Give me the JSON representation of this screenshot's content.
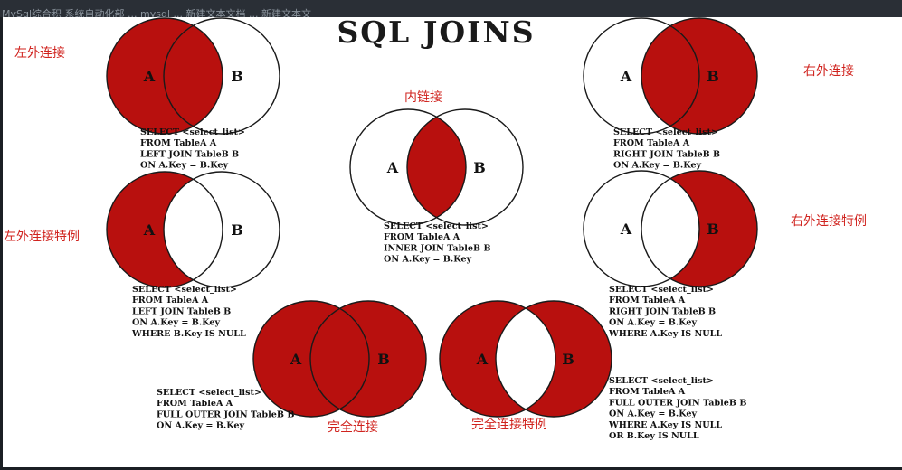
{
  "window": {
    "top_bar_text": "MySql综合积 系统自动化部 ... mysql ... 新建文本文档 ... 新建文本文"
  },
  "diagram": {
    "title": "SQL JOINS",
    "set_a": "A",
    "set_b": "B",
    "colors": {
      "fill": "#b8100e",
      "outline": "#1a1a1a",
      "label": "#d0231e",
      "background": "#ffffff"
    },
    "joins": [
      {
        "id": "left-outer",
        "label": "左外连接",
        "shaded_regions": [
          "a_only",
          "intersection"
        ],
        "sql": [
          "SELECT <select_list>",
          "FROM TableA A",
          "LEFT JOIN TableB B",
          "ON A.Key = B.Key"
        ]
      },
      {
        "id": "inner",
        "label": "内链接",
        "shaded_regions": [
          "intersection"
        ],
        "sql": [
          "SELECT <select_list>",
          "FROM TableA A",
          "INNER JOIN TableB B",
          "ON A.Key = B.Key"
        ]
      },
      {
        "id": "right-outer",
        "label": "右外连接",
        "shaded_regions": [
          "b_only",
          "intersection"
        ],
        "sql": [
          "SELECT <select_list>",
          "FROM TableA A",
          "RIGHT JOIN TableB B",
          "ON A.Key = B.Key"
        ]
      },
      {
        "id": "left-outer-special",
        "label": "左外连接特例",
        "shaded_regions": [
          "a_only"
        ],
        "sql": [
          "SELECT <select_list>",
          "FROM TableA A",
          "LEFT JOIN TableB B",
          "ON A.Key = B.Key",
          "WHERE B.Key IS NULL"
        ]
      },
      {
        "id": "right-outer-special",
        "label": "右外连接特例",
        "shaded_regions": [
          "b_only"
        ],
        "sql": [
          "SELECT <select_list>",
          "FROM TableA A",
          "RIGHT JOIN TableB B",
          "ON A.Key = B.Key",
          "WHERE A.Key IS NULL"
        ]
      },
      {
        "id": "full-outer",
        "label": "完全连接",
        "shaded_regions": [
          "a_only",
          "intersection",
          "b_only"
        ],
        "sql": [
          "SELECT <select_list>",
          "FROM TableA A",
          "FULL OUTER JOIN TableB B",
          "ON A.Key = B.Key"
        ]
      },
      {
        "id": "full-outer-special",
        "label": "完全连接特例",
        "shaded_regions": [
          "a_only",
          "b_only"
        ],
        "sql": [
          "SELECT <select_list>",
          "FROM TableA A",
          "FULL OUTER JOIN TableB B",
          "ON A.Key = B.Key",
          "WHERE A.Key IS NULL",
          "OR B.Key IS NULL"
        ]
      }
    ]
  }
}
